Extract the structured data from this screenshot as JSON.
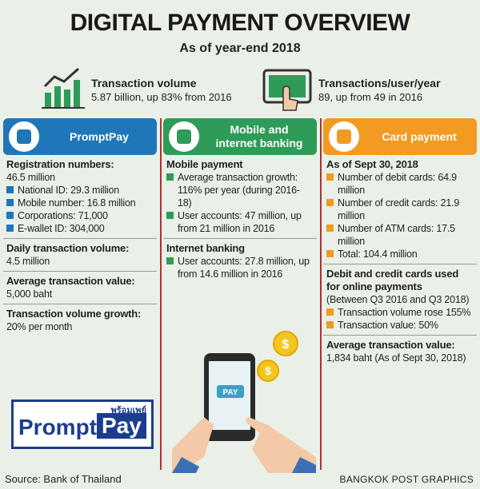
{
  "header": {
    "title": "DIGITAL PAYMENT OVERVIEW",
    "subtitle": "As of year-end 2018"
  },
  "highlights": [
    {
      "label": "Transaction volume",
      "text": "5.87 billion, up 83% from 2016"
    },
    {
      "label": "Transactions/user/year",
      "text": "89, up from 49 in 2016"
    }
  ],
  "columns": [
    {
      "title": [
        "PromptPay"
      ],
      "color": "#1f77b9",
      "sections": [
        {
          "heading": "Registration numbers:",
          "text": "46.5 million",
          "bullets": [
            "National ID: 29.3 million",
            "Mobile number: 16.8 million",
            "Corporations: 71,000",
            "E-wallet ID: 304,000"
          ]
        },
        {
          "heading": "Daily transaction volume:",
          "text": "4.5 million"
        },
        {
          "heading": "Average transaction value:",
          "text": "5,000 baht"
        },
        {
          "heading": "Transaction volume growth:",
          "text": "20% per month"
        }
      ]
    },
    {
      "title": [
        "Mobile and",
        "internet banking"
      ],
      "color": "#2e9b58",
      "sections": [
        {
          "heading": "Mobile payment",
          "bullets": [
            "Average transaction growth: 116% per year (during 2016-18)",
            "User accounts: 47 million, up from 21 million in 2016"
          ]
        },
        {
          "heading": "Internet banking",
          "bullets": [
            "User accounts: 27.8 million, up from 14.6 million in 2016"
          ]
        }
      ]
    },
    {
      "title": [
        "Card payment"
      ],
      "color": "#f29a22",
      "sections": [
        {
          "heading": "As of Sept 30, 2018",
          "bullets": [
            "Number of debit cards: 64.9 million",
            "Number of credit cards: 21.9 million",
            "Number of ATM cards: 17.5 million",
            "Total: 104.4 million"
          ]
        },
        {
          "heading": "Debit and credit cards used for online payments",
          "text": "(Between Q3 2016 and Q3 2018)",
          "bullets": [
            "Transaction volume rose 155%",
            "Transaction value: 50%"
          ]
        },
        {
          "heading": "Average transaction value:",
          "text": "1,834 baht (As of Sept 30, 2018)"
        }
      ]
    }
  ],
  "logo": {
    "thai": "พร้อมเพย์",
    "prompt": "Prompt",
    "pay": "Pay"
  },
  "illustration": {
    "button": "PAY"
  },
  "footer": {
    "source": "Source: Bank of Thailand",
    "credit": "BANGKOK POST GRAPHICS"
  }
}
